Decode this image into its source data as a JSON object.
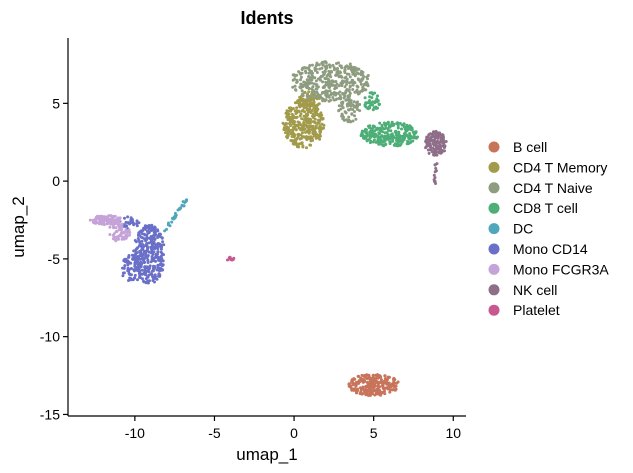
{
  "chart_data": {
    "type": "scatter",
    "title": "Idents",
    "xlabel": "umap_1",
    "ylabel": "umap_2",
    "xlim": [
      -14.2,
      10.8
    ],
    "ylim": [
      -15.1,
      9.2
    ],
    "xticks": [
      -10,
      -5,
      0,
      5,
      10
    ],
    "yticks": [
      5,
      0,
      -5,
      -10,
      -15
    ],
    "grid": false,
    "legend_position": "right",
    "series": [
      {
        "name": "B cell",
        "color": "#C8745A",
        "clusters": [
          {
            "cx": 5.0,
            "cy": -13.1,
            "rx": 1.6,
            "ry": 0.7,
            "n": 260
          }
        ]
      },
      {
        "name": "CD4 T Memory",
        "color": "#A19B4B",
        "clusters": [
          {
            "cx": 0.6,
            "cy": 3.7,
            "rx": 1.3,
            "ry": 1.6,
            "n": 330
          },
          {
            "cx": 0.9,
            "cy": 5.2,
            "rx": 0.8,
            "ry": 0.6,
            "n": 60
          }
        ]
      },
      {
        "name": "CD4 T Naive",
        "color": "#8E9C7F",
        "clusters": [
          {
            "cx": 2.3,
            "cy": 6.4,
            "rx": 2.5,
            "ry": 1.3,
            "n": 380
          },
          {
            "cx": 3.5,
            "cy": 4.6,
            "rx": 0.7,
            "ry": 0.8,
            "n": 60
          }
        ]
      },
      {
        "name": "CD8 T cell",
        "color": "#4DAE77",
        "clusters": [
          {
            "cx": 6.0,
            "cy": 3.0,
            "rx": 1.8,
            "ry": 0.8,
            "n": 260
          },
          {
            "cx": 4.9,
            "cy": 5.1,
            "rx": 0.5,
            "ry": 0.6,
            "n": 45
          }
        ]
      },
      {
        "name": "DC",
        "color": "#4FA7BC",
        "line": [
          [
            -8.1,
            -3.2
          ],
          [
            -6.7,
            -1.1
          ]
        ],
        "n": 30
      },
      {
        "name": "Mono CD14",
        "color": "#6A70C8",
        "clusters": [
          {
            "cx": -9.1,
            "cy": -4.7,
            "rx": 1.0,
            "ry": 1.9,
            "n": 330
          },
          {
            "cx": -10.2,
            "cy": -5.6,
            "rx": 0.7,
            "ry": 0.9,
            "n": 70
          },
          {
            "cx": -10.4,
            "cy": -2.7,
            "rx": 0.7,
            "ry": 0.4,
            "n": 30
          }
        ]
      },
      {
        "name": "Mono FCGR3A",
        "color": "#C5A3D8",
        "clusters": [
          {
            "cx": -11.8,
            "cy": -2.5,
            "rx": 1.0,
            "ry": 0.3,
            "n": 110
          },
          {
            "cx": -11.0,
            "cy": -3.3,
            "rx": 0.7,
            "ry": 0.6,
            "n": 60
          }
        ]
      },
      {
        "name": "NK cell",
        "color": "#8E6E88",
        "clusters": [
          {
            "cx": 8.9,
            "cy": 2.4,
            "rx": 0.7,
            "ry": 0.8,
            "n": 130
          }
        ],
        "line": [
          [
            8.9,
            1.2
          ],
          [
            8.8,
            -0.2
          ]
        ],
        "line_n": 12
      },
      {
        "name": "Platelet",
        "color": "#C75990",
        "clusters": [
          {
            "cx": -4.0,
            "cy": -5.0,
            "rx": 0.25,
            "ry": 0.12,
            "n": 14
          }
        ]
      }
    ]
  }
}
